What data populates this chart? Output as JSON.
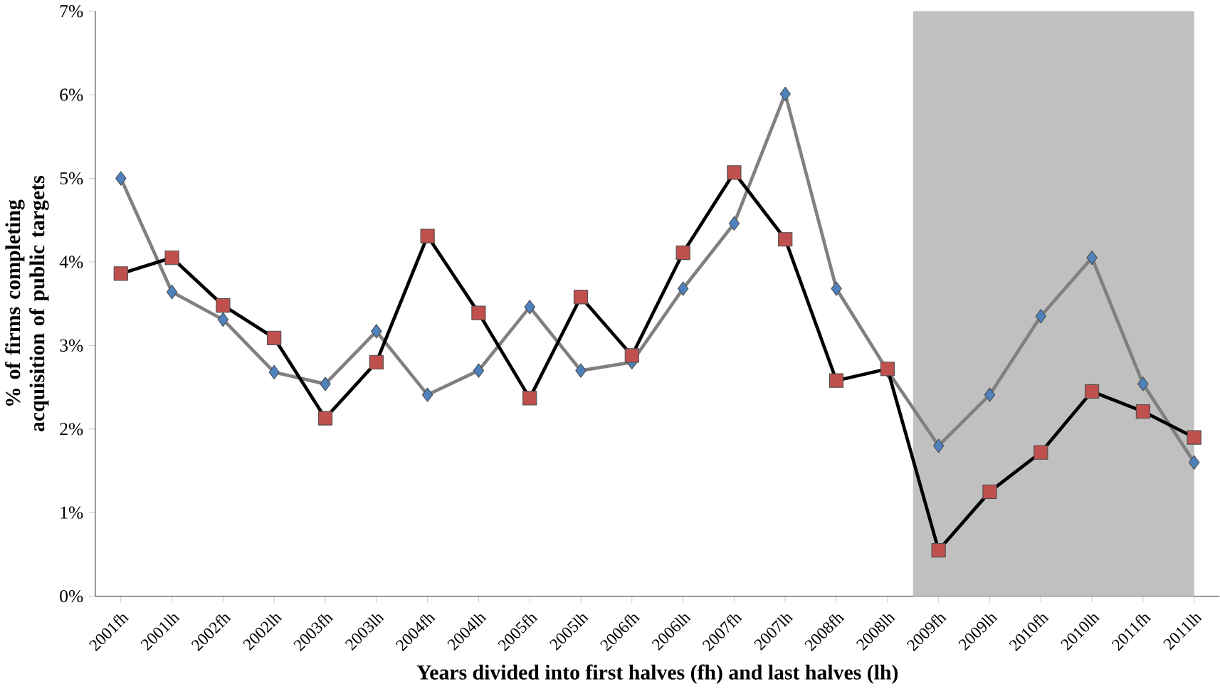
{
  "chart_data": {
    "type": "line",
    "xlabel": "Years divided into first halves (fh) and last halves (lh)",
    "ylabel": "% of firms completing acquisition of public targets",
    "categories": [
      "2001fh",
      "2001lh",
      "2002fh",
      "2002lh",
      "2003fh",
      "2003lh",
      "2004fh",
      "2004lh",
      "2005fh",
      "2005lh",
      "2006fh",
      "2006lh",
      "2007fh",
      "2007lh",
      "2008fh",
      "2008lh",
      "2009fh",
      "2009lh",
      "2010fh",
      "2010lh",
      "2011fh",
      "2011lh"
    ],
    "series": [
      {
        "color": "#4f81bd",
        "marker": "diamond",
        "values": [
          5.0,
          3.64,
          3.31,
          2.68,
          2.54,
          3.17,
          2.41,
          2.7,
          3.46,
          2.7,
          2.8,
          3.68,
          4.46,
          6.01,
          3.68,
          2.7,
          1.8,
          2.41,
          3.35,
          4.05,
          2.54,
          1.6
        ]
      },
      {
        "color": "#c0504d",
        "marker": "square",
        "values": [
          3.86,
          4.05,
          3.48,
          3.09,
          2.13,
          2.8,
          4.31,
          3.39,
          2.37,
          3.58,
          2.88,
          4.11,
          5.07,
          4.27,
          2.58,
          2.72,
          0.55,
          1.25,
          1.72,
          2.45,
          2.21,
          1.9
        ]
      }
    ],
    "ylim": [
      0,
      7
    ],
    "yticks": [
      {
        "value": 0,
        "label": "0%"
      },
      {
        "value": 1,
        "label": "1%"
      },
      {
        "value": 2,
        "label": "2%"
      },
      {
        "value": 3,
        "label": "3%"
      },
      {
        "value": 4,
        "label": "4%"
      },
      {
        "value": 5,
        "label": "5%"
      },
      {
        "value": 6,
        "label": "6%"
      },
      {
        "value": 7,
        "label": "7%"
      }
    ],
    "bands": [
      {
        "axis": "x",
        "from": "2009fh",
        "to": "2011lh",
        "color": "#c0c0c0"
      }
    ]
  }
}
